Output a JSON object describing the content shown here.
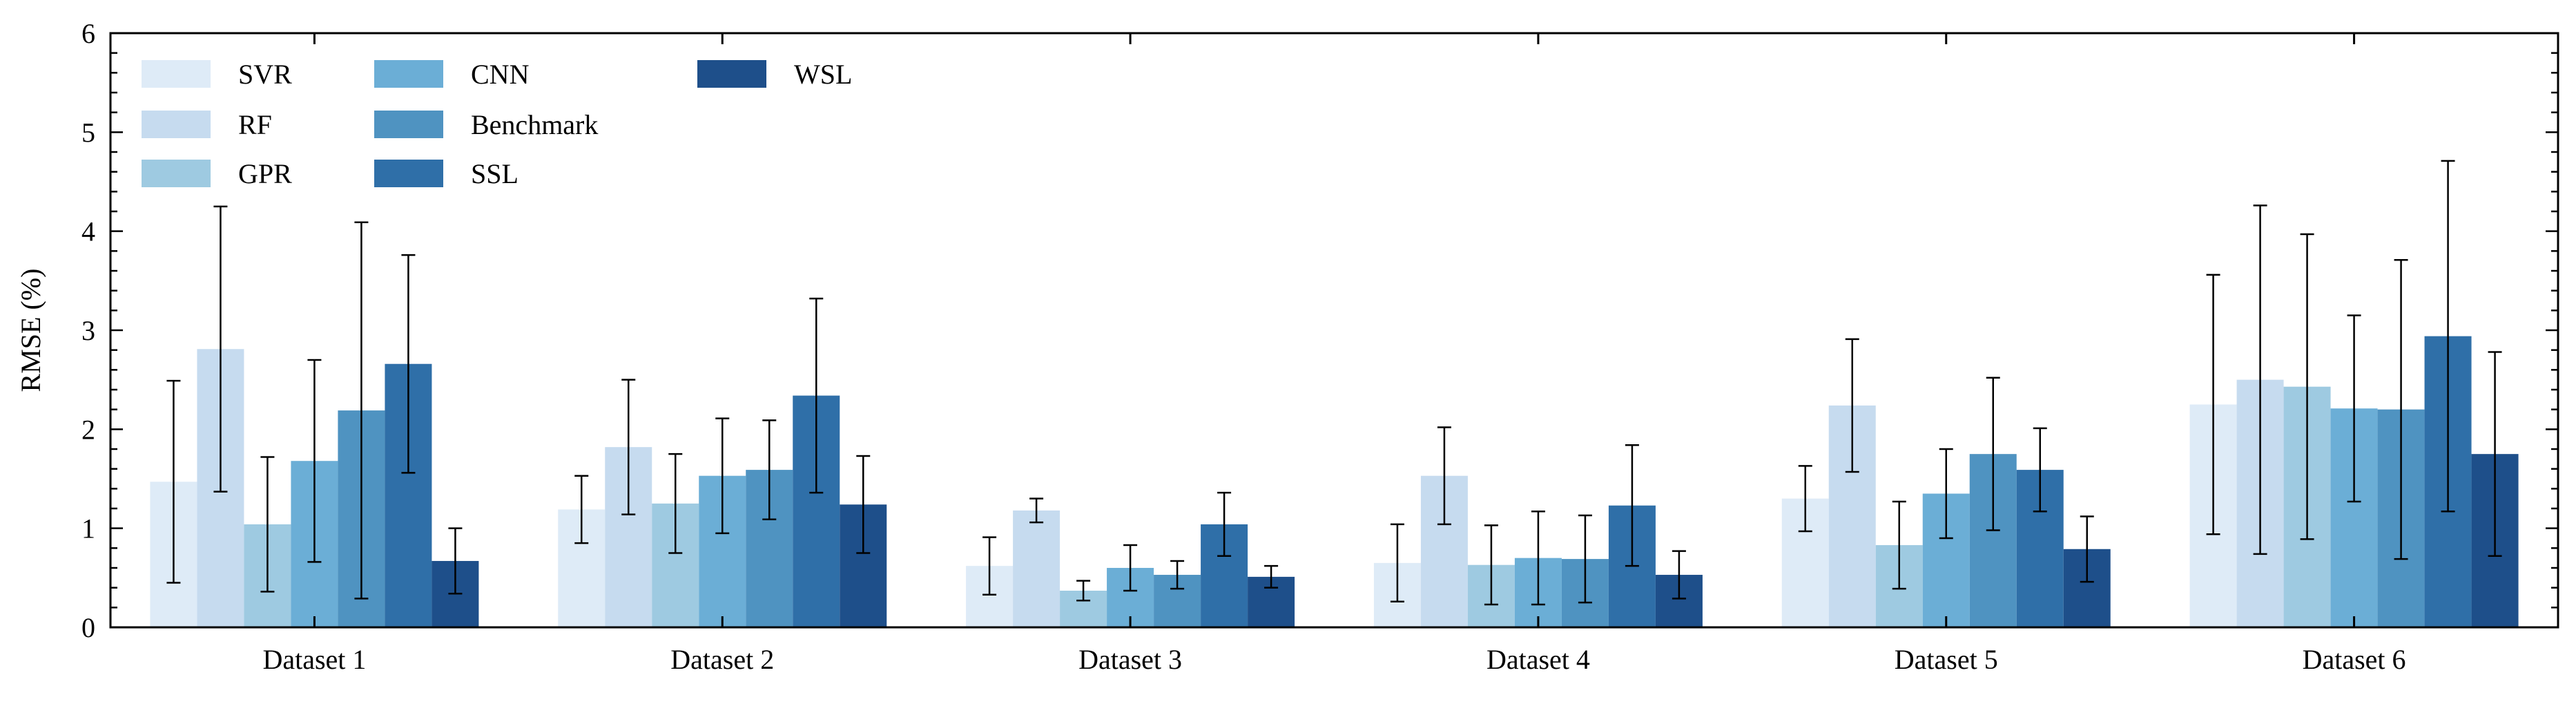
{
  "chart_data": {
    "type": "bar",
    "title": "",
    "xlabel": "",
    "ylabel": "RMSE (%)",
    "ylim": [
      0,
      6
    ],
    "yticks": [
      "0",
      "1",
      "2",
      "3",
      "4",
      "5",
      "6"
    ],
    "categories": [
      "Dataset 1",
      "Dataset 2",
      "Dataset 3",
      "Dataset 4",
      "Dataset 5",
      "Dataset 6"
    ],
    "legend_placement": "top-left",
    "grid": false,
    "error_bars": true,
    "series": [
      {
        "name": "SVR",
        "color": "#deebf7",
        "values": [
          1.47,
          1.19,
          0.62,
          0.65,
          1.3,
          2.25
        ],
        "errors": [
          1.02,
          0.34,
          0.29,
          0.39,
          0.33,
          1.31
        ]
      },
      {
        "name": "RF",
        "color": "#c6dbef",
        "values": [
          2.81,
          1.82,
          1.18,
          1.53,
          2.24,
          2.5
        ],
        "errors": [
          1.44,
          0.68,
          0.12,
          0.49,
          0.67,
          1.76
        ]
      },
      {
        "name": "GPR",
        "color": "#9ecae1",
        "values": [
          1.04,
          1.25,
          0.37,
          0.63,
          0.83,
          2.43
        ],
        "errors": [
          0.68,
          0.5,
          0.1,
          0.4,
          0.44,
          1.54
        ]
      },
      {
        "name": "CNN",
        "color": "#6baed6",
        "values": [
          1.68,
          1.53,
          0.6,
          0.7,
          1.35,
          2.21
        ],
        "errors": [
          1.02,
          0.58,
          0.23,
          0.47,
          0.45,
          0.94
        ]
      },
      {
        "name": "Benchmark",
        "color": "#4f93c1",
        "values": [
          2.19,
          1.59,
          0.53,
          0.69,
          1.75,
          2.2
        ],
        "errors": [
          1.9,
          0.5,
          0.14,
          0.44,
          0.77,
          1.51
        ]
      },
      {
        "name": "SSL",
        "color": "#2f6fa8",
        "values": [
          2.66,
          2.34,
          1.04,
          1.23,
          1.59,
          2.94
        ],
        "errors": [
          1.1,
          0.98,
          0.32,
          0.61,
          0.42,
          1.77
        ]
      },
      {
        "name": "WSL",
        "color": "#1e4f8a",
        "values": [
          0.67,
          1.24,
          0.51,
          0.53,
          0.79,
          1.75
        ],
        "errors": [
          0.33,
          0.49,
          0.11,
          0.24,
          0.33,
          1.03
        ]
      }
    ]
  }
}
